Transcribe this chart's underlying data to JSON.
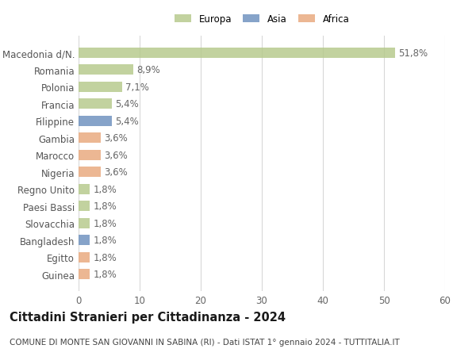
{
  "categories": [
    "Guinea",
    "Egitto",
    "Bangladesh",
    "Slovacchia",
    "Paesi Bassi",
    "Regno Unito",
    "Nigeria",
    "Marocco",
    "Gambia",
    "Filippine",
    "Francia",
    "Polonia",
    "Romania",
    "Macedonia d/N."
  ],
  "values": [
    1.8,
    1.8,
    1.8,
    1.8,
    1.8,
    1.8,
    3.6,
    3.6,
    3.6,
    5.4,
    5.4,
    7.1,
    8.9,
    51.8
  ],
  "bar_colors": [
    "#e8a87c",
    "#e8a87c",
    "#6b8fbd",
    "#b5c98a",
    "#b5c98a",
    "#b5c98a",
    "#e8a87c",
    "#e8a87c",
    "#e8a87c",
    "#6b8fbd",
    "#b5c98a",
    "#b5c98a",
    "#b5c98a",
    "#b5c98a"
  ],
  "labels": [
    "1,8%",
    "1,8%",
    "1,8%",
    "1,8%",
    "1,8%",
    "1,8%",
    "3,6%",
    "3,6%",
    "3,6%",
    "5,4%",
    "5,4%",
    "7,1%",
    "8,9%",
    "51,8%"
  ],
  "legend_labels": [
    "Europa",
    "Asia",
    "Africa"
  ],
  "legend_colors": [
    "#b5c98a",
    "#6b8fbd",
    "#e8a87c"
  ],
  "title": "Cittadini Stranieri per Cittadinanza - 2024",
  "subtitle": "COMUNE DI MONTE SAN GIOVANNI IN SABINA (RI) - Dati ISTAT 1° gennaio 2024 - TUTTITALIA.IT",
  "xlim": [
    0,
    60
  ],
  "xticks": [
    0,
    10,
    20,
    30,
    40,
    50,
    60
  ],
  "background_color": "#ffffff",
  "grid_color": "#d8d8d8",
  "bar_height": 0.62,
  "label_fontsize": 8.5,
  "tick_fontsize": 8.5,
  "title_fontsize": 10.5,
  "subtitle_fontsize": 7.5,
  "alpha": 0.82
}
